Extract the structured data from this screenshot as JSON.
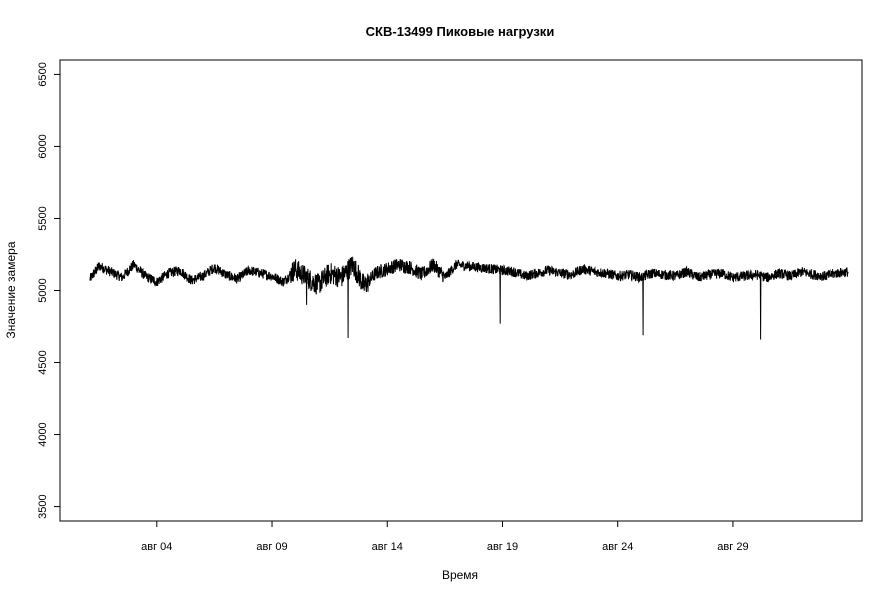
{
  "chart_data": {
    "type": "line",
    "title": "СКВ-13499 Пиковые нагрузки",
    "xlabel": "Время",
    "ylabel": "Значение замера",
    "y_ticks": [
      3500,
      4000,
      4500,
      5000,
      5500,
      6000,
      6500
    ],
    "ylim": [
      3400,
      6600
    ],
    "x_ticks": [
      {
        "day": 4,
        "label": "авг 04"
      },
      {
        "day": 9,
        "label": "авг 09"
      },
      {
        "day": 14,
        "label": "авг 14"
      },
      {
        "day": 19,
        "label": "авг 19"
      },
      {
        "day": 24,
        "label": "авг 24"
      },
      {
        "day": 29,
        "label": "авг 29"
      }
    ],
    "xlim_day": [
      -0.2,
      34.6
    ],
    "grid": false,
    "legend": "none",
    "line_color": "#000000",
    "series": [
      {
        "x_day": [
          1.1,
          1.5,
          2.0,
          2.5,
          3.0,
          3.5,
          4.0,
          4.5,
          5.0,
          5.5,
          6.0,
          6.5,
          7.0,
          7.5,
          8.0,
          8.5,
          9.0,
          9.5,
          10.0,
          10.5,
          11.0,
          11.5,
          12.0,
          12.5,
          13.0,
          13.5,
          14.0,
          14.5,
          15.0,
          15.5,
          16.0,
          16.5,
          17.0,
          17.5,
          18.0,
          18.5,
          19.0,
          19.5,
          20.0,
          20.5,
          21.0,
          21.5,
          22.0,
          22.5,
          23.0,
          23.5,
          24.0,
          24.5,
          25.0,
          25.5,
          26.0,
          26.5,
          27.0,
          27.5,
          28.0,
          28.5,
          29.0,
          29.5,
          30.0,
          30.5,
          31.0,
          31.5,
          32.0,
          32.5,
          33.0,
          33.5,
          34.0
        ],
        "y": [
          5080,
          5170,
          5130,
          5090,
          5180,
          5100,
          5060,
          5120,
          5140,
          5070,
          5100,
          5160,
          5110,
          5080,
          5140,
          5120,
          5100,
          5060,
          5150,
          5090,
          5040,
          5120,
          5090,
          5180,
          5030,
          5120,
          5150,
          5180,
          5160,
          5110,
          5180,
          5090,
          5180,
          5170,
          5160,
          5150,
          5140,
          5130,
          5100,
          5120,
          5140,
          5120,
          5110,
          5150,
          5130,
          5120,
          5100,
          5110,
          5090,
          5120,
          5110,
          5100,
          5130,
          5090,
          5110,
          5120,
          5090,
          5100,
          5110,
          5090,
          5120,
          5100,
          5130,
          5110,
          5100,
          5120,
          5130
        ]
      }
    ],
    "spikes": [
      {
        "day": 10.5,
        "value": 4900
      },
      {
        "day": 12.3,
        "value": 4670
      },
      {
        "day": 18.9,
        "value": 4770
      },
      {
        "day": 25.1,
        "value": 4690
      },
      {
        "day": 30.2,
        "value": 4660
      }
    ]
  }
}
